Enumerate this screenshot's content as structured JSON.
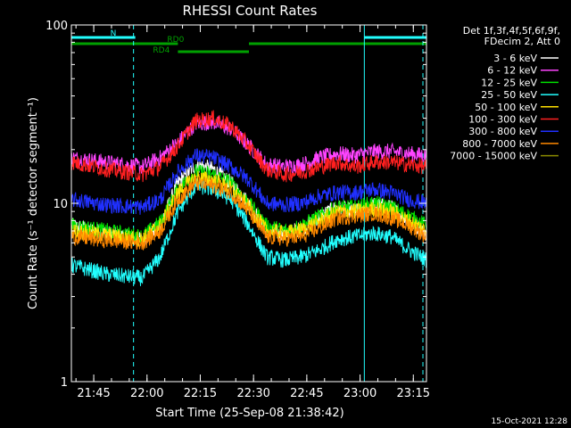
{
  "chart_data": {
    "type": "line",
    "title": "RHESSI Count Rates",
    "xlabel": "Start Time (25-Sep-08 21:38:42)",
    "ylabel": "Count Rate (s⁻¹ detector segment⁻¹)",
    "x_unit": "minutes after 21:38:42",
    "xlim": [
      0,
      100
    ],
    "ylim": [
      1,
      100
    ],
    "yscale": "log",
    "x_ticks": [
      {
        "label": "21:45",
        "value": 6.3
      },
      {
        "label": "22:00",
        "value": 21.3
      },
      {
        "label": "22:15",
        "value": 36.3
      },
      {
        "label": "22:30",
        "value": 51.3
      },
      {
        "label": "22:45",
        "value": 66.3
      },
      {
        "label": "23:00",
        "value": 81.3
      },
      {
        "label": "23:15",
        "value": 96.3
      }
    ],
    "y_ticks": [
      {
        "label": "1",
        "value": 1
      },
      {
        "label": "10",
        "value": 10
      },
      {
        "label": "100",
        "value": 100
      }
    ],
    "legend": {
      "placement": "right",
      "header": [
        "Det 1f,3f,4f,5f,6f,9f,",
        "FDecim 2, Att 0"
      ]
    },
    "series": [
      {
        "name": "3 - 6 keV",
        "color": "#ffffff",
        "x": [
          0,
          10,
          20,
          25,
          30,
          35,
          40,
          45,
          50,
          55,
          60,
          65,
          70,
          75,
          80,
          85,
          90,
          95,
          100
        ],
        "values": [
          7.5,
          6.8,
          6.2,
          7.5,
          13.0,
          16.5,
          15.5,
          13.0,
          10.0,
          7.0,
          6.8,
          7.2,
          8.5,
          9.5,
          9.0,
          9.8,
          9.5,
          8.0,
          6.8
        ]
      },
      {
        "name": "6 - 12 keV",
        "color": "#ff44ff",
        "x": [
          0,
          10,
          20,
          25,
          30,
          35,
          40,
          45,
          50,
          55,
          60,
          65,
          70,
          75,
          80,
          85,
          90,
          95,
          100
        ],
        "values": [
          18.0,
          17.0,
          16.0,
          18.0,
          22.0,
          28.0,
          28.5,
          26.0,
          21.0,
          16.5,
          16.0,
          16.5,
          18.0,
          19.0,
          18.5,
          19.5,
          19.5,
          19.0,
          18.5
        ]
      },
      {
        "name": "12 - 25 keV",
        "color": "#00e000",
        "x": [
          0,
          10,
          20,
          25,
          30,
          35,
          40,
          45,
          50,
          55,
          60,
          65,
          70,
          75,
          80,
          85,
          90,
          95,
          100
        ],
        "values": [
          7.5,
          7.0,
          6.5,
          7.8,
          12.0,
          15.0,
          14.5,
          13.0,
          10.0,
          7.5,
          7.0,
          7.5,
          8.5,
          9.5,
          9.5,
          10.0,
          9.5,
          8.5,
          7.5
        ]
      },
      {
        "name": "25 - 50 keV",
        "color": "#22ffff",
        "x": [
          0,
          10,
          20,
          25,
          30,
          35,
          40,
          45,
          50,
          55,
          60,
          65,
          70,
          75,
          80,
          85,
          90,
          95,
          100
        ],
        "values": [
          4.5,
          4.0,
          3.8,
          5.0,
          9.0,
          12.5,
          12.0,
          10.5,
          7.5,
          5.0,
          4.8,
          5.0,
          5.5,
          6.3,
          6.5,
          6.8,
          6.5,
          5.5,
          4.8
        ]
      },
      {
        "name": "50 - 100 keV",
        "color": "#ffe000",
        "x": [
          0,
          10,
          20,
          25,
          30,
          35,
          40,
          45,
          50,
          55,
          60,
          65,
          70,
          75,
          80,
          85,
          90,
          95,
          100
        ],
        "values": [
          7.0,
          6.6,
          6.3,
          7.5,
          11.5,
          14.0,
          13.5,
          12.0,
          9.5,
          7.0,
          6.8,
          7.1,
          8.0,
          9.0,
          9.0,
          9.3,
          9.0,
          8.0,
          7.0
        ]
      },
      {
        "name": "100 - 300 keV",
        "color": "#ff2020",
        "x": [
          0,
          10,
          20,
          25,
          30,
          35,
          40,
          45,
          50,
          55,
          60,
          65,
          70,
          75,
          80,
          85,
          90,
          95,
          100
        ],
        "values": [
          17.0,
          15.5,
          14.5,
          16.0,
          21.0,
          29.0,
          30.0,
          27.0,
          21.0,
          15.5,
          14.5,
          15.0,
          16.0,
          17.0,
          16.0,
          17.0,
          17.0,
          16.5,
          16.0
        ]
      },
      {
        "name": "300 - 800 keV",
        "color": "#2030ff",
        "x": [
          0,
          10,
          20,
          25,
          30,
          35,
          40,
          45,
          50,
          55,
          60,
          65,
          70,
          75,
          80,
          85,
          90,
          95,
          100
        ],
        "values": [
          10.5,
          9.8,
          9.5,
          10.5,
          15.0,
          18.5,
          18.0,
          16.0,
          13.5,
          10.0,
          9.8,
          10.0,
          11.0,
          11.5,
          11.5,
          12.0,
          11.5,
          10.5,
          10.0
        ]
      },
      {
        "name": "800 - 7000 keV",
        "color": "#ff8800",
        "x": [
          0,
          10,
          20,
          25,
          30,
          35,
          40,
          45,
          50,
          55,
          60,
          65,
          70,
          75,
          80,
          85,
          90,
          95,
          100
        ],
        "values": [
          6.5,
          6.2,
          6.0,
          7.0,
          10.5,
          13.0,
          12.5,
          11.5,
          9.0,
          6.5,
          6.3,
          6.5,
          7.3,
          8.3,
          8.5,
          8.8,
          8.3,
          7.5,
          6.5
        ]
      },
      {
        "name": "7000 - 15000 keV",
        "color": "#8a8a00",
        "x": [],
        "values": []
      }
    ],
    "flags": [
      {
        "label": "N",
        "color": "#22ffff",
        "segments": [
          [
            0,
            18
          ],
          [
            82.5,
            100
          ]
        ],
        "level": 1
      },
      {
        "label": "RD0",
        "color": "#00a000",
        "segments": [
          [
            0,
            30
          ],
          [
            50,
            100
          ]
        ],
        "level": 2
      },
      {
        "label": "RD4",
        "color": "#00a000",
        "segments": [
          [
            30,
            50
          ]
        ],
        "level": 3
      }
    ],
    "vlines": [
      {
        "x": 0,
        "style": "solid",
        "color": "#22ffff"
      },
      {
        "x": 17.5,
        "style": "dashed",
        "color": "#22ffff"
      },
      {
        "x": 82.5,
        "style": "solid",
        "color": "#22ffff"
      },
      {
        "x": 99,
        "style": "dashed",
        "color": "#22ffff"
      }
    ],
    "grid": false
  },
  "timestamp": "15-Oct-2021 12:28"
}
